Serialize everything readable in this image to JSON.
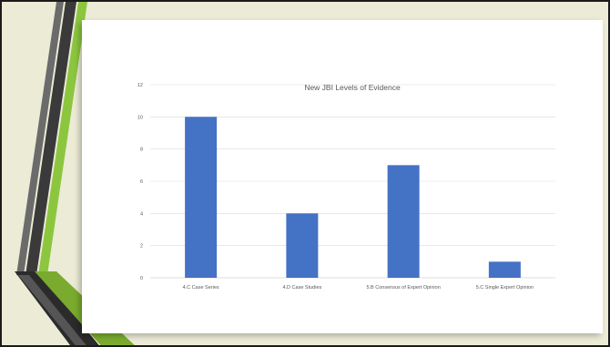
{
  "colors": {
    "background": "#ecebd6",
    "card": "#ffffff",
    "bar": "#4472c4",
    "grid": "#d9d9d9",
    "text": "#595959",
    "accent_green": "#8cc63f",
    "accent_dark": "#3a3a3a"
  },
  "chart_data": {
    "type": "bar",
    "title": "New JBI Levels of Evidence",
    "categories": [
      "4.C Case Series",
      "4.D Case Studies",
      "5.B Consensus of Expert Opinion",
      "5.C Single Expert Opinion"
    ],
    "values": [
      10,
      4,
      7,
      1
    ],
    "ylim": [
      0,
      12
    ],
    "yticks": [
      0,
      2,
      4,
      6,
      8,
      10,
      12
    ],
    "grid": true,
    "legend": "none"
  }
}
